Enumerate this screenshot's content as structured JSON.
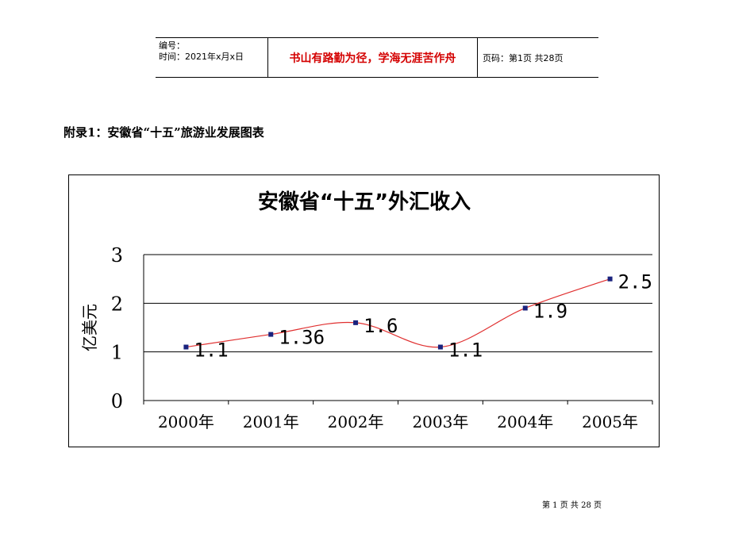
{
  "header": {
    "code_label": "编号：",
    "time_label": "时间：2021年x月x日",
    "motto": "书山有路勤为径，学海无涯苦作舟",
    "page_info": "页码：第1页 共28页"
  },
  "heading": "附录1：安徽省“十五”旅游业发展图表",
  "chart_data": {
    "type": "line",
    "title": "安徽省“十五”外汇收入",
    "xlabel": "",
    "ylabel": "亿美元",
    "categories": [
      "2000年",
      "2001年",
      "2002年",
      "2003年",
      "2004年",
      "2005年"
    ],
    "values": [
      1.1,
      1.36,
      1.6,
      1.1,
      1.9,
      2.5
    ],
    "data_labels": [
      "1.1",
      "1.36",
      "1.6",
      "1.1",
      "1.9",
      "2.5"
    ],
    "y_ticks": [
      "0",
      "1",
      "2",
      "3"
    ],
    "ylim": [
      0,
      3
    ],
    "grid": true,
    "legend": "none",
    "line_color": "#e03030",
    "marker_color": "#1a237e"
  },
  "footer": "第 1 页 共 28 页"
}
